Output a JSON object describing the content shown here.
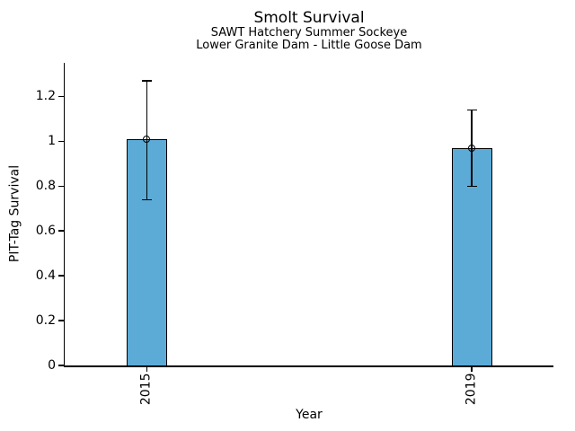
{
  "chart_data": {
    "type": "bar",
    "title": "Smolt Survival",
    "subtitles": [
      "SAWT Hatchery Summer Sockeye",
      "Lower Granite Dam - Little Goose Dam"
    ],
    "xlabel": "Year",
    "ylabel": "PIT-Tag Survival",
    "categories": [
      "2015",
      "2019"
    ],
    "values": [
      1.01,
      0.97
    ],
    "error_low": [
      0.74,
      0.8
    ],
    "error_high": [
      1.27,
      1.14
    ],
    "yticks": [
      {
        "value": 0,
        "label": "0"
      },
      {
        "value": 0.2,
        "label": "0.2"
      },
      {
        "value": 0.4,
        "label": "0.4"
      },
      {
        "value": 0.6,
        "label": "0.6"
      },
      {
        "value": 0.8,
        "label": "0.8"
      },
      {
        "value": 1.0,
        "label": "1"
      },
      {
        "value": 1.2,
        "label": "1.2"
      }
    ],
    "ylim": [
      0,
      1.35
    ],
    "grid": false,
    "legend": null,
    "marker": "open-circle",
    "bar_color": "#5BABD6",
    "bar_edge_color": "#000000",
    "error_bar_color": "#000000",
    "axis_color": "#000000",
    "background_color": "#FFFFFF"
  }
}
